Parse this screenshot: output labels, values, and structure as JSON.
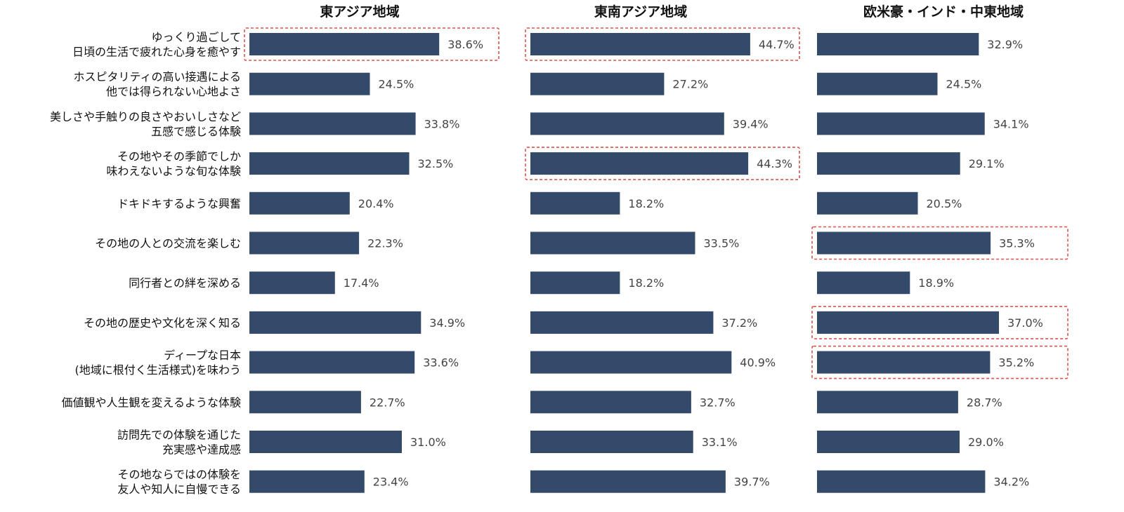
{
  "chart_data": {
    "type": "bar",
    "orientation": "horizontal",
    "xlim": [
      0,
      50
    ],
    "grid": false,
    "legend": "none",
    "colors": {
      "bar": "#344a6b",
      "highlight": "#d9534f"
    },
    "categories": [
      [
        "ゆっくり過ごして",
        "日頃の生活で疲れた心身を癒やす"
      ],
      [
        "ホスピタリティの高い接遇による",
        "他では得られない心地よさ"
      ],
      [
        "美しさや手触りの良さやおいしさなど",
        "五感で感じる体験"
      ],
      [
        "その地やその季節でしか",
        "味わえないような旬な体験"
      ],
      [
        "ドキドキするような興奮"
      ],
      [
        "その地の人との交流を楽しむ"
      ],
      [
        "同行者との絆を深める"
      ],
      [
        "その地の歴史や文化を深く知る"
      ],
      [
        "ディープな日本",
        "(地域に根付く生活様式)を味わう"
      ],
      [
        "価値観や人生観を変えるような体験"
      ],
      [
        "訪問先での体験を通じた",
        "充実感や達成感"
      ],
      [
        "その地ならではの体験を",
        "友人や知人に自慢できる"
      ]
    ],
    "series": [
      {
        "name": "東アジア地域",
        "values": [
          38.6,
          24.5,
          33.8,
          32.5,
          20.4,
          22.3,
          17.4,
          34.9,
          33.6,
          22.7,
          31.0,
          23.4
        ],
        "labels": [
          "38.6%",
          "24.5%",
          "33.8%",
          "32.5%",
          "20.4%",
          "22.3%",
          "17.4%",
          "34.9%",
          "33.6%",
          "22.7%",
          "31.0%",
          "23.4%"
        ],
        "highlighted": [
          0
        ]
      },
      {
        "name": "東南アジア地域",
        "values": [
          44.7,
          27.2,
          39.4,
          44.3,
          18.2,
          33.5,
          18.2,
          37.2,
          40.9,
          32.7,
          33.1,
          39.7
        ],
        "labels": [
          "44.7%",
          "27.2%",
          "39.4%",
          "44.3%",
          "18.2%",
          "33.5%",
          "18.2%",
          "37.2%",
          "40.9%",
          "32.7%",
          "33.1%",
          "39.7%"
        ],
        "highlighted": [
          0,
          3
        ]
      },
      {
        "name": "欧米豪・インド・中東地域",
        "values": [
          32.9,
          24.5,
          34.1,
          29.1,
          20.5,
          35.3,
          18.9,
          37.0,
          35.2,
          28.7,
          29.0,
          34.2
        ],
        "labels": [
          "32.9%",
          "24.5%",
          "34.1%",
          "29.1%",
          "20.5%",
          "35.3%",
          "18.9%",
          "37.0%",
          "35.2%",
          "28.7%",
          "29.0%",
          "34.2%"
        ],
        "highlighted": [
          5,
          7,
          8
        ]
      }
    ]
  }
}
